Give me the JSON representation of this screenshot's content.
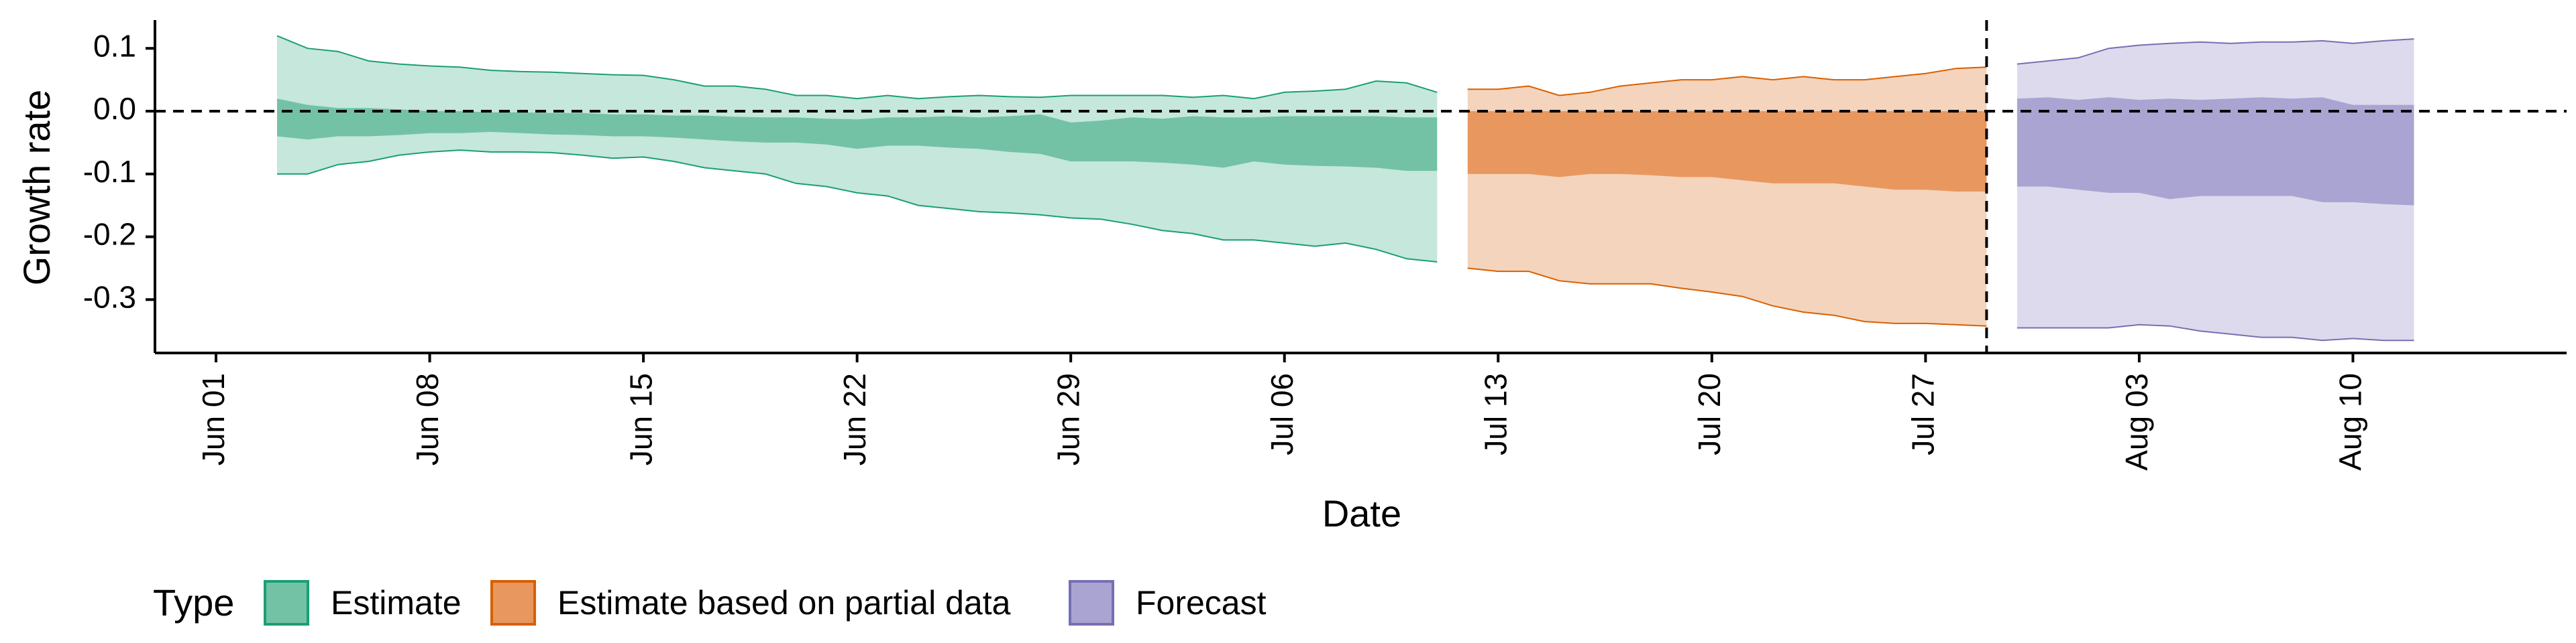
{
  "chart_data": {
    "type": "area",
    "xlabel": "Date",
    "ylabel": "Growth rate",
    "x_range": [
      "2020-05-30",
      "2020-08-17"
    ],
    "ylim": [
      -0.385,
      0.145
    ],
    "x_ticks": [
      {
        "date": "2020-06-01",
        "label": "Jun 01"
      },
      {
        "date": "2020-06-08",
        "label": "Jun 08"
      },
      {
        "date": "2020-06-15",
        "label": "Jun 15"
      },
      {
        "date": "2020-06-22",
        "label": "Jun 22"
      },
      {
        "date": "2020-06-29",
        "label": "Jun 29"
      },
      {
        "date": "2020-07-06",
        "label": "Jul 06"
      },
      {
        "date": "2020-07-13",
        "label": "Jul 13"
      },
      {
        "date": "2020-07-20",
        "label": "Jul 20"
      },
      {
        "date": "2020-07-27",
        "label": "Jul 27"
      },
      {
        "date": "2020-08-03",
        "label": "Aug 03"
      },
      {
        "date": "2020-08-10",
        "label": "Aug 10"
      }
    ],
    "y_ticks": [
      {
        "value": 0.1,
        "label": "0.1"
      },
      {
        "value": 0.0,
        "label": "0.0"
      },
      {
        "value": -0.1,
        "label": "-0.1"
      },
      {
        "value": -0.2,
        "label": "-0.2"
      },
      {
        "value": -0.3,
        "label": "-0.3"
      }
    ],
    "reference_lines": {
      "horizontal_y": 0.0,
      "vertical_date": "2020-07-29"
    },
    "grid": false,
    "legend": {
      "title": "Type",
      "placement": "bottom-left",
      "entries": [
        "Estimate",
        "Estimate based on partial data",
        "Forecast"
      ]
    },
    "series": [
      {
        "name": "Estimate",
        "fill_dark": "#73c2a5",
        "fill_light": "#c5e7dc",
        "edge_color": "#1b9e77",
        "dates": [
          "2020-06-03",
          "2020-06-04",
          "2020-06-05",
          "2020-06-06",
          "2020-06-07",
          "2020-06-08",
          "2020-06-09",
          "2020-06-10",
          "2020-06-11",
          "2020-06-12",
          "2020-06-13",
          "2020-06-14",
          "2020-06-15",
          "2020-06-16",
          "2020-06-17",
          "2020-06-18",
          "2020-06-19",
          "2020-06-20",
          "2020-06-21",
          "2020-06-22",
          "2020-06-23",
          "2020-06-24",
          "2020-06-25",
          "2020-06-26",
          "2020-06-27",
          "2020-06-28",
          "2020-06-29",
          "2020-06-30",
          "2020-07-01",
          "2020-07-02",
          "2020-07-03",
          "2020-07-04",
          "2020-07-05",
          "2020-07-06",
          "2020-07-07",
          "2020-07-08",
          "2020-07-09",
          "2020-07-10",
          "2020-07-11"
        ],
        "upper90": [
          0.12,
          0.1,
          0.095,
          0.08,
          0.075,
          0.072,
          0.07,
          0.065,
          0.063,
          0.062,
          0.06,
          0.058,
          0.057,
          0.05,
          0.04,
          0.04,
          0.035,
          0.025,
          0.025,
          0.02,
          0.025,
          0.02,
          0.023,
          0.025,
          0.023,
          0.022,
          0.025,
          0.025,
          0.025,
          0.025,
          0.022,
          0.025,
          0.02,
          0.03,
          0.032,
          0.035,
          0.048,
          0.045,
          0.03
        ],
        "upper50": [
          0.02,
          0.01,
          0.005,
          0.005,
          0.003,
          0.0,
          0.0,
          -0.002,
          -0.002,
          -0.003,
          -0.003,
          -0.005,
          -0.005,
          -0.007,
          -0.007,
          -0.009,
          -0.01,
          -0.01,
          -0.012,
          -0.013,
          -0.01,
          -0.01,
          -0.008,
          -0.01,
          -0.008,
          -0.005,
          -0.018,
          -0.015,
          -0.01,
          -0.012,
          -0.008,
          -0.01,
          -0.01,
          -0.008,
          -0.008,
          -0.008,
          -0.008,
          -0.01,
          -0.01
        ],
        "lower50": [
          -0.04,
          -0.045,
          -0.04,
          -0.04,
          -0.038,
          -0.035,
          -0.035,
          -0.033,
          -0.035,
          -0.037,
          -0.038,
          -0.04,
          -0.04,
          -0.042,
          -0.045,
          -0.048,
          -0.05,
          -0.05,
          -0.053,
          -0.06,
          -0.055,
          -0.055,
          -0.058,
          -0.06,
          -0.065,
          -0.068,
          -0.08,
          -0.08,
          -0.08,
          -0.082,
          -0.085,
          -0.09,
          -0.08,
          -0.085,
          -0.087,
          -0.088,
          -0.09,
          -0.095,
          -0.095
        ],
        "lower90": [
          -0.1,
          -0.1,
          -0.085,
          -0.08,
          -0.07,
          -0.065,
          -0.062,
          -0.065,
          -0.065,
          -0.066,
          -0.07,
          -0.075,
          -0.073,
          -0.08,
          -0.09,
          -0.095,
          -0.1,
          -0.115,
          -0.12,
          -0.13,
          -0.135,
          -0.15,
          -0.155,
          -0.16,
          -0.162,
          -0.165,
          -0.17,
          -0.172,
          -0.18,
          -0.19,
          -0.195,
          -0.205,
          -0.205,
          -0.21,
          -0.215,
          -0.21,
          -0.22,
          -0.235,
          -0.24
        ]
      },
      {
        "name": "Estimate based on partial data",
        "fill_dark": "#e8985f",
        "fill_light": "#f4d4bc",
        "edge_color": "#d95f02",
        "dates": [
          "2020-07-12",
          "2020-07-13",
          "2020-07-14",
          "2020-07-15",
          "2020-07-16",
          "2020-07-17",
          "2020-07-18",
          "2020-07-19",
          "2020-07-20",
          "2020-07-21",
          "2020-07-22",
          "2020-07-23",
          "2020-07-24",
          "2020-07-25",
          "2020-07-26",
          "2020-07-27",
          "2020-07-28",
          "2020-07-29"
        ],
        "upper90": [
          0.035,
          0.035,
          0.04,
          0.025,
          0.03,
          0.04,
          0.045,
          0.05,
          0.05,
          0.055,
          0.05,
          0.055,
          0.05,
          0.05,
          0.055,
          0.06,
          0.068,
          0.07
        ],
        "upper50": [
          0.0,
          0.0,
          0.0,
          0.0,
          0.0,
          0.0,
          0.0,
          0.0,
          0.0,
          0.0,
          0.0,
          0.0,
          0.0,
          0.0,
          0.0,
          0.0,
          0.0,
          0.0
        ],
        "lower50": [
          -0.1,
          -0.1,
          -0.1,
          -0.105,
          -0.1,
          -0.1,
          -0.102,
          -0.105,
          -0.105,
          -0.11,
          -0.115,
          -0.115,
          -0.115,
          -0.12,
          -0.125,
          -0.125,
          -0.128,
          -0.128
        ],
        "lower90": [
          -0.25,
          -0.255,
          -0.255,
          -0.27,
          -0.275,
          -0.275,
          -0.275,
          -0.282,
          -0.288,
          -0.295,
          -0.31,
          -0.32,
          -0.325,
          -0.335,
          -0.338,
          -0.338,
          -0.34,
          -0.342
        ]
      },
      {
        "name": "Forecast",
        "fill_dark": "#a9a4d1",
        "fill_light": "#dcdaec",
        "edge_color": "#7570b3",
        "dates": [
          "2020-07-30",
          "2020-07-31",
          "2020-08-01",
          "2020-08-02",
          "2020-08-03",
          "2020-08-04",
          "2020-08-05",
          "2020-08-06",
          "2020-08-07",
          "2020-08-08",
          "2020-08-09",
          "2020-08-10",
          "2020-08-11",
          "2020-08-12"
        ],
        "upper90": [
          0.075,
          0.08,
          0.085,
          0.1,
          0.105,
          0.108,
          0.11,
          0.108,
          0.11,
          0.11,
          0.112,
          0.108,
          0.112,
          0.115
        ],
        "upper50": [
          0.02,
          0.022,
          0.018,
          0.022,
          0.018,
          0.02,
          0.018,
          0.02,
          0.022,
          0.02,
          0.022,
          0.01,
          0.01,
          0.01
        ],
        "lower50": [
          -0.12,
          -0.12,
          -0.125,
          -0.13,
          -0.13,
          -0.14,
          -0.135,
          -0.135,
          -0.135,
          -0.135,
          -0.145,
          -0.145,
          -0.148,
          -0.15
        ],
        "lower90": [
          -0.345,
          -0.345,
          -0.345,
          -0.345,
          -0.34,
          -0.342,
          -0.35,
          -0.355,
          -0.36,
          -0.36,
          -0.365,
          -0.362,
          -0.365,
          -0.365
        ]
      }
    ]
  }
}
